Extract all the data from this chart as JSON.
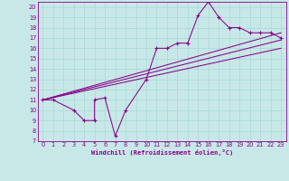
{
  "xlabel": "Windchill (Refroidissement éolien,°C)",
  "bg_color": "#c8e8e8",
  "grid_color": "#a8d8d8",
  "line_color": "#880088",
  "xlim": [
    -0.5,
    23.5
  ],
  "ylim": [
    7,
    20.5
  ],
  "xticks": [
    0,
    1,
    2,
    3,
    4,
    5,
    6,
    7,
    8,
    9,
    10,
    11,
    12,
    13,
    14,
    15,
    16,
    17,
    18,
    19,
    20,
    21,
    22,
    23
  ],
  "yticks": [
    7,
    8,
    9,
    10,
    11,
    12,
    13,
    14,
    15,
    16,
    17,
    18,
    19,
    20
  ],
  "scatter_x": [
    0,
    1,
    3,
    4,
    5,
    5,
    6,
    7,
    8,
    10,
    11,
    12,
    13,
    14,
    15,
    16,
    17,
    18,
    19,
    20,
    21,
    22,
    23
  ],
  "scatter_y": [
    11,
    11,
    10,
    9,
    9,
    11,
    11.2,
    7.5,
    10,
    13,
    16,
    16,
    16.5,
    16.5,
    19.2,
    20.5,
    19,
    18,
    18,
    17.5,
    17.5,
    17.5,
    17.0
  ],
  "line1_x": [
    0,
    23
  ],
  "line1_y": [
    11.0,
    17.5
  ],
  "line2_x": [
    0,
    23
  ],
  "line2_y": [
    11.0,
    16.8
  ],
  "line3_x": [
    0,
    23
  ],
  "line3_y": [
    11.0,
    16.0
  ]
}
